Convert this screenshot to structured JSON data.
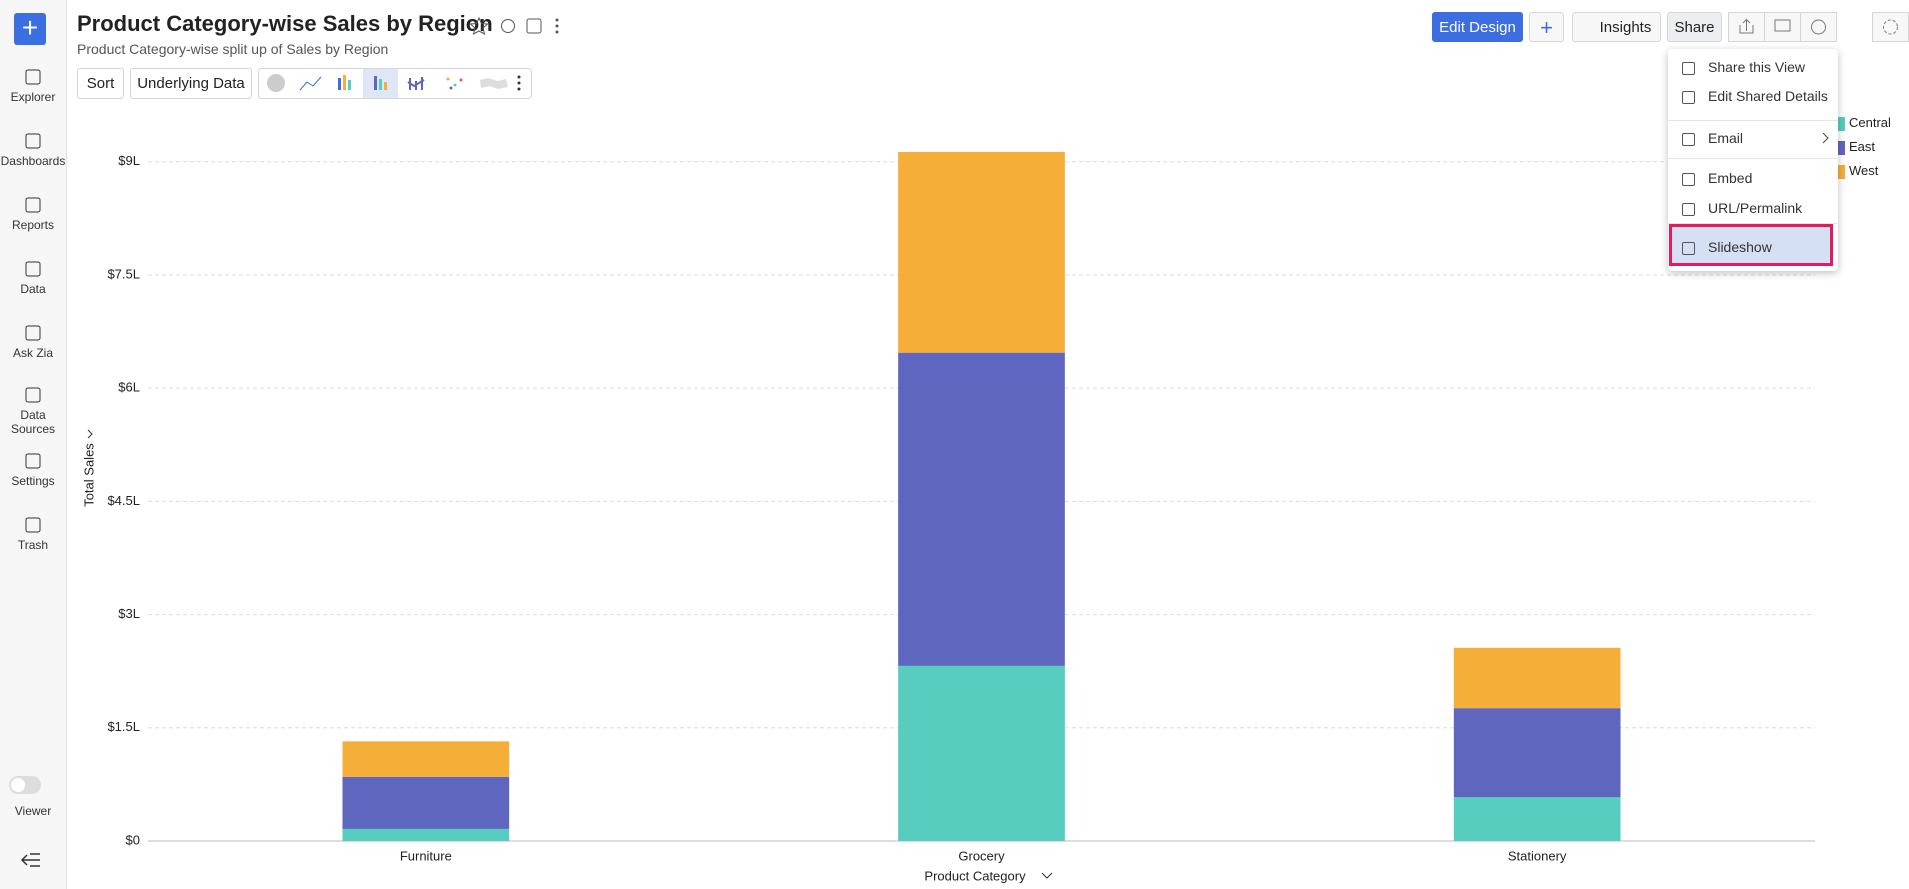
{
  "sidebar": {
    "items": [
      "Explorer",
      "Dashboards",
      "Reports",
      "Data",
      "Ask Zia",
      "Data Sources",
      "Settings",
      "Trash"
    ],
    "viewer": "Viewer"
  },
  "header": {
    "title": "Product Category-wise Sales by Region",
    "subtitle": "Product Category-wise split up of Sales by Region",
    "buttons": [
      "Edit Design",
      "Insights",
      "Share"
    ]
  },
  "toolbar": [
    "Sort",
    "Underlying Data"
  ],
  "share_menu": [
    "Share this View",
    "Edit Shared Details",
    "Email",
    "Embed",
    "URL/Permalink",
    "Slideshow"
  ],
  "chart_data": {
    "type": "stacked_bar",
    "x_label": "Product Category",
    "y_label": "Total Sales",
    "categories": [
      "Furniture",
      "Grocery",
      "Stationery"
    ],
    "series": [
      {
        "name": "Central",
        "color": "#56cdbf",
        "values": [
          0.16,
          2.32,
          0.58
        ]
      },
      {
        "name": "East",
        "color": "#5f66c0",
        "values": [
          0.69,
          4.15,
          1.18
        ]
      },
      {
        "name": "West",
        "color": "#f5ae38",
        "values": [
          0.47,
          2.66,
          0.8
        ]
      }
    ],
    "ylim": [
      0,
      9.5
    ],
    "yticks": [
      {
        "value": 0,
        "label": "$0"
      },
      {
        "value": 1.5,
        "label": "$1.5L"
      },
      {
        "value": 3,
        "label": "$3L"
      },
      {
        "value": 4.5,
        "label": "$4.5L"
      },
      {
        "value": 6,
        "label": "$6L"
      },
      {
        "value": 7.5,
        "label": "$7.5L"
      },
      {
        "value": 9,
        "label": "$9L"
      }
    ],
    "grid": true
  }
}
